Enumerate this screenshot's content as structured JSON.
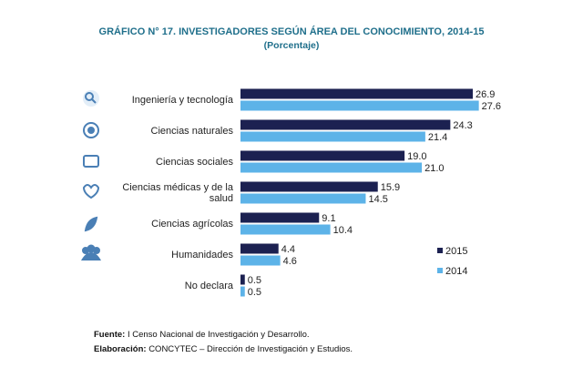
{
  "chart_data": {
    "type": "bar",
    "orientation": "horizontal",
    "title": "GRÁFICO N° 17. INVESTIGADORES SEGÚN ÁREA DEL CONOCIMIENTO, 2014-15",
    "subtitle": "(Porcentaje)",
    "categories": [
      "Ingeniería y tecnología",
      "Ciencias naturales",
      "Ciencias sociales",
      "Ciencias médicas y de la salud",
      "Ciencias agrícolas",
      "Humanidades",
      "No declara"
    ],
    "series": [
      {
        "name": "2015",
        "color": "#1c2151",
        "values": [
          26.9,
          24.3,
          19.0,
          15.9,
          9.1,
          4.4,
          0.5
        ],
        "value_labels": [
          "26.9",
          "24.3",
          "19.0",
          "15.9",
          "9.1",
          "4.4",
          "0.5"
        ]
      },
      {
        "name": "2014",
        "color": "#5db3e8",
        "values": [
          27.6,
          21.4,
          21.0,
          14.5,
          10.4,
          4.6,
          0.5
        ],
        "value_labels": [
          "27.6",
          "21.4",
          "21.0",
          "14.5",
          "10.4",
          "4.6",
          "0.5"
        ]
      }
    ],
    "legend": "lower right",
    "source": {
      "label": "Fuente:",
      "text": "I Censo Nacional de Investigación y Desarrollo."
    },
    "credit": {
      "label": "Elaboración:",
      "text": "CONCYTEC – Dirección de Investigación y Estudios."
    }
  }
}
